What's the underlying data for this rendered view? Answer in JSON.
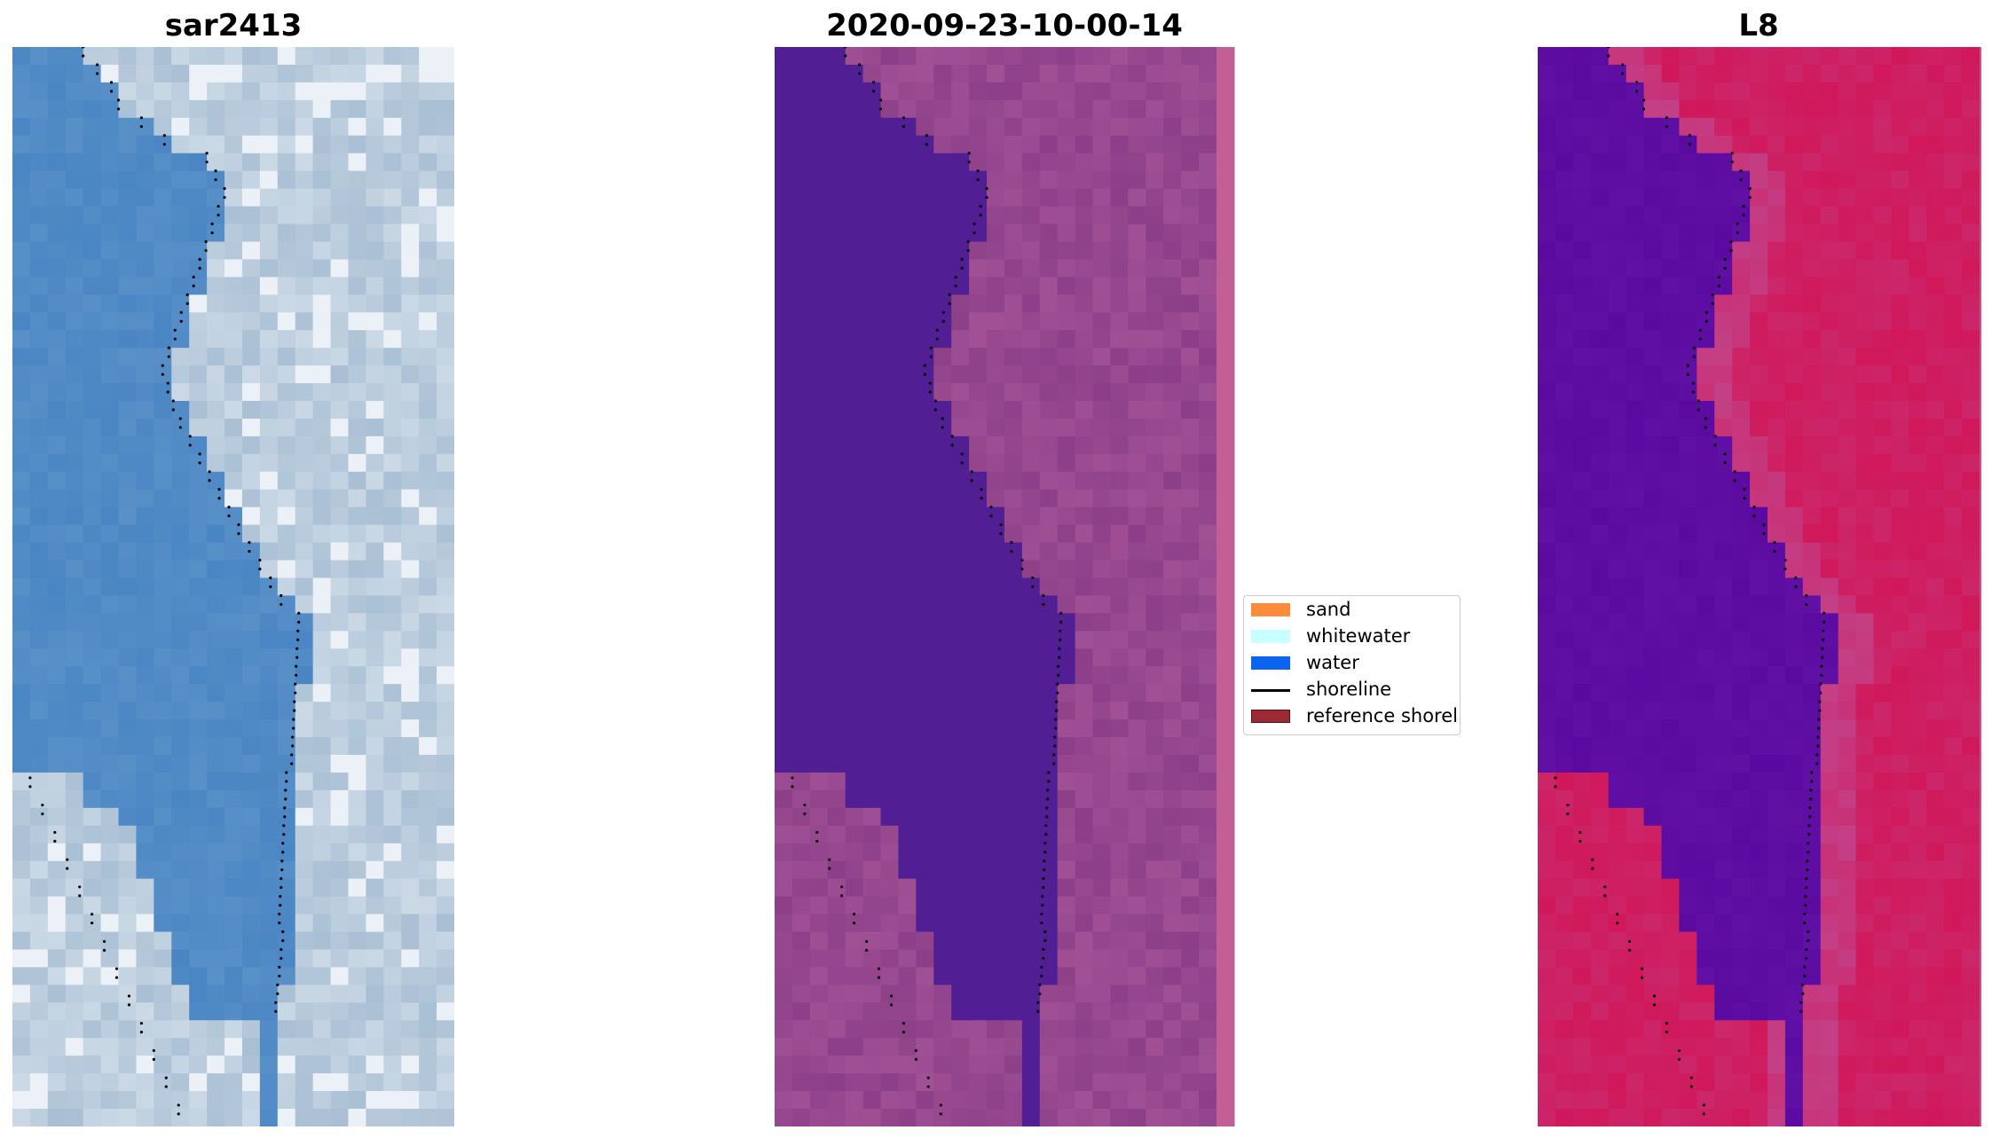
{
  "panels": [
    {
      "title": "sar2413",
      "kind": "rgb"
    },
    {
      "title": "2020-09-23-10-00-14",
      "kind": "classified"
    },
    {
      "title": "L8",
      "kind": "index"
    }
  ],
  "legend": {
    "items": [
      {
        "label": "sand",
        "color": "#ff8c3c",
        "type": "patch"
      },
      {
        "label": "whitewater",
        "color": "#c8ffff",
        "type": "patch"
      },
      {
        "label": "water",
        "color": "#0a64f0",
        "type": "patch"
      },
      {
        "label": "shoreline",
        "color": "#000000",
        "type": "line"
      },
      {
        "label": "reference shoreline buffer",
        "color": "#9b2a34",
        "type": "patch"
      }
    ]
  },
  "colors": {
    "rgb_water": "#4a86c4",
    "rgb_land": "#a9bfd4",
    "classified_water": "#511f93",
    "classified_land": "#8c3f88",
    "index_water": "#5a0aa0",
    "index_land": "#d0185a",
    "shoreline": "#000000"
  }
}
